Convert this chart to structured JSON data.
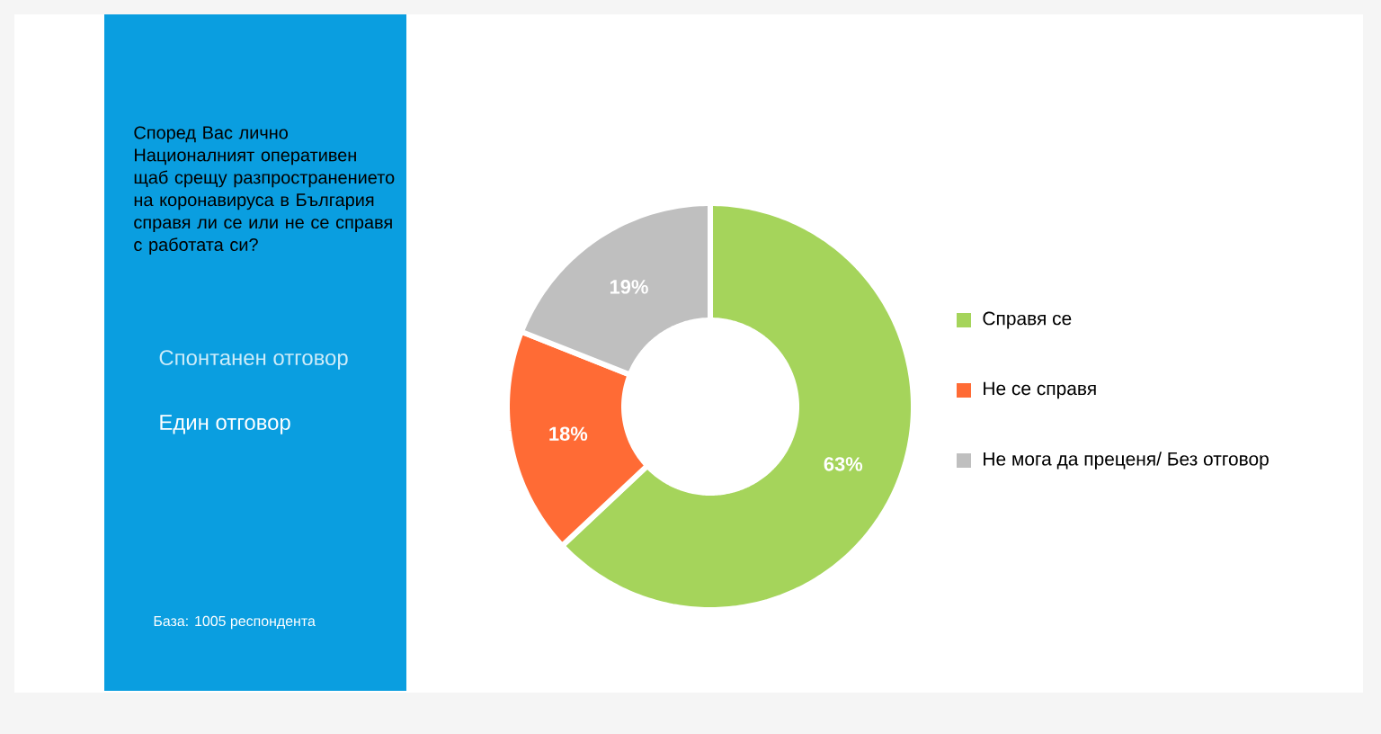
{
  "chart_data": {
    "type": "donut",
    "title": "Според Вас лично Националният оперативен щаб срещу разпространението на коронавируса в България справя ли се или не се справя с работата си?",
    "annotations": [
      "Спонтанен отговор",
      "Един отговор",
      "База: 1005 респондента"
    ],
    "categories": [
      "Справя се",
      "Не се справя",
      "Не мога да преценя/ Без отговор"
    ],
    "values": [
      63,
      18,
      19
    ],
    "colors": [
      "#a5d45b",
      "#ff6b35",
      "#bfbfbf"
    ],
    "value_labels": [
      "63%",
      "18%",
      "19%"
    ],
    "legend": "right"
  }
}
